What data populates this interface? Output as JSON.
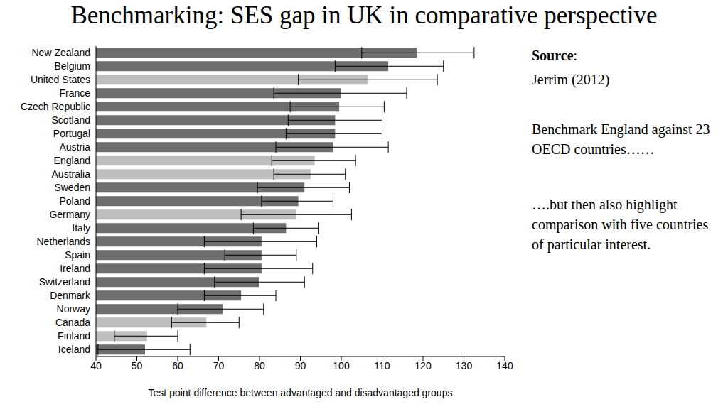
{
  "chart_data": {
    "type": "bar",
    "orientation": "horizontal",
    "title": "Benchmarking: SES gap in UK in comparative perspective",
    "x_label": "Test point difference between advantaged and disadvantaged groups",
    "annotations": [
      "Source",
      ":",
      "Jerrim (2012)",
      "Benchmark England against 23 OECD countries……",
      "….but then also highlight comparison with five countries of particular interest."
    ],
    "categories": [
      "New Zealand",
      "Belgium",
      "United States",
      "France",
      "Czech Republic",
      "Scotland",
      "Portugal",
      "Austria",
      "England",
      "Australia",
      "Sweden",
      "Poland",
      "Germany",
      "Italy",
      "Netherlands",
      "Spain",
      "Ireland",
      "Switzerland",
      "Denmark",
      "Norway",
      "Canada",
      "Finland",
      "Iceland"
    ],
    "values": [
      118.5,
      111.5,
      106.5,
      100,
      99.5,
      98.5,
      98.5,
      98,
      93.5,
      92.5,
      91,
      89.5,
      89,
      86.5,
      80.5,
      80.5,
      80.5,
      80,
      75.5,
      71,
      67,
      52.5,
      52
    ],
    "errors": [
      [
        105,
        132.5
      ],
      [
        98.5,
        125
      ],
      [
        89.5,
        123.5
      ],
      [
        83.5,
        116
      ],
      [
        87.5,
        110.5
      ],
      [
        87,
        110
      ],
      [
        86.5,
        110
      ],
      [
        84,
        111.5
      ],
      [
        83,
        103.5
      ],
      [
        83.5,
        101
      ],
      [
        79.5,
        102
      ],
      [
        80.5,
        98
      ],
      [
        75.5,
        102.5
      ],
      [
        78.5,
        94.5
      ],
      [
        66.5,
        94
      ],
      [
        71.5,
        89
      ],
      [
        66.5,
        93
      ],
      [
        69,
        91
      ],
      [
        66.5,
        84
      ],
      [
        60,
        81
      ],
      [
        58.5,
        75
      ],
      [
        44.5,
        60
      ],
      [
        40.5,
        63
      ]
    ],
    "colors": [
      "#6e6e6e",
      "#6e6e6e",
      "#bdbdbd",
      "#6e6e6e",
      "#6e6e6e",
      "#6e6e6e",
      "#6e6e6e",
      "#6e6e6e",
      "#bdbdbd",
      "#bdbdbd",
      "#6e6e6e",
      "#6e6e6e",
      "#bdbdbd",
      "#6e6e6e",
      "#6e6e6e",
      "#6e6e6e",
      "#6e6e6e",
      "#6e6e6e",
      "#6e6e6e",
      "#6e6e6e",
      "#bdbdbd",
      "#bdbdbd",
      "#6e6e6e"
    ],
    "xlim": [
      40,
      140
    ],
    "xticks": [
      40,
      50,
      60,
      70,
      80,
      90,
      100,
      110,
      120,
      130,
      140
    ],
    "grid": false
  }
}
